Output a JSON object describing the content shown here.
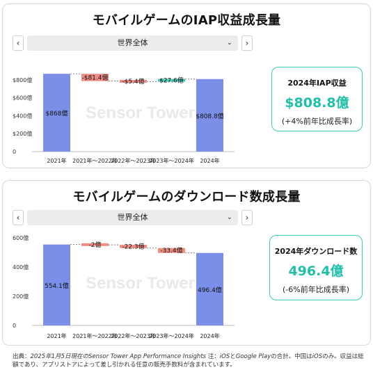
{
  "panels": [
    {
      "title": "モバイルゲームのIAP収益成長量",
      "nav_prev": "‹",
      "nav_next": "›",
      "dropdown_value": "世界全体",
      "dropdown_icon": "chevron-down-icon",
      "summary": {
        "label": "2024年IAP収益",
        "value": "$808.8億",
        "sub": "(+4%前年比成長率)"
      }
    },
    {
      "title": "モバイルゲームのダウンロード数成長量",
      "nav_prev": "‹",
      "nav_next": "›",
      "dropdown_value": "世界全体",
      "dropdown_icon": "chevron-down-icon",
      "summary": {
        "label": "2024年ダウンロード数",
        "value": "496.4億",
        "sub": "(-6%前年比成長率)"
      }
    }
  ],
  "chart_data": [
    {
      "type": "bar",
      "subtype": "waterfall",
      "categories": [
        "2021年",
        "2021年～2022年",
        "2022年～2023年",
        "2023年～2024年",
        "2024年"
      ],
      "values": [
        868,
        -81.4,
        -5.4,
        27.6,
        808.8
      ],
      "value_labels": [
        "$868億",
        "-$81.4億",
        "-$5.4億",
        "$27.6億",
        "$808.8億"
      ],
      "bar_kinds": [
        "total",
        "decrease",
        "decrease",
        "increase",
        "total"
      ],
      "yticks": [
        0,
        200,
        400,
        600,
        800
      ],
      "ytick_labels": [
        "0",
        "$200億",
        "$400億",
        "$600億",
        "$800億"
      ],
      "ylim": [
        0,
        900
      ],
      "watermark": "Sensor Tower",
      "colors": {
        "total": "#7b8ee8",
        "decrease": "#f08c84",
        "increase": "#3fc9b6"
      }
    },
    {
      "type": "bar",
      "subtype": "waterfall",
      "categories": [
        "2021年",
        "2021年～2022年",
        "2022年～2023年",
        "2023年～2024年",
        "2024年"
      ],
      "values": [
        554.1,
        -2,
        -22.3,
        -33.4,
        496.4
      ],
      "value_labels": [
        "554.1億",
        "-2億",
        "-22.3億",
        "-33.4億",
        "496.4億"
      ],
      "bar_kinds": [
        "total",
        "decrease",
        "decrease",
        "decrease",
        "total"
      ],
      "yticks": [
        0,
        200,
        400,
        600
      ],
      "ytick_labels": [
        "0",
        "200億",
        "400億",
        "600億"
      ],
      "ylim": [
        0,
        600
      ],
      "watermark": "Sensor Tower",
      "colors": {
        "total": "#7b8ee8",
        "decrease": "#f08c84",
        "increase": "#3fc9b6"
      }
    }
  ],
  "footnote": {
    "prefix": "出典：",
    "italic1": "2025年1月5日現在のSensor Tower App Performance Insights",
    "mid1": " 注：",
    "italic2": "iOS",
    "mid2": "と",
    "italic3": "Google Play",
    "mid3": "の合計。中国は",
    "italic4": "iOS",
    "rest": "のみ。収益は総額であり、アプリストアによって差し引かれる任意の販売手数料が含まれています。"
  }
}
